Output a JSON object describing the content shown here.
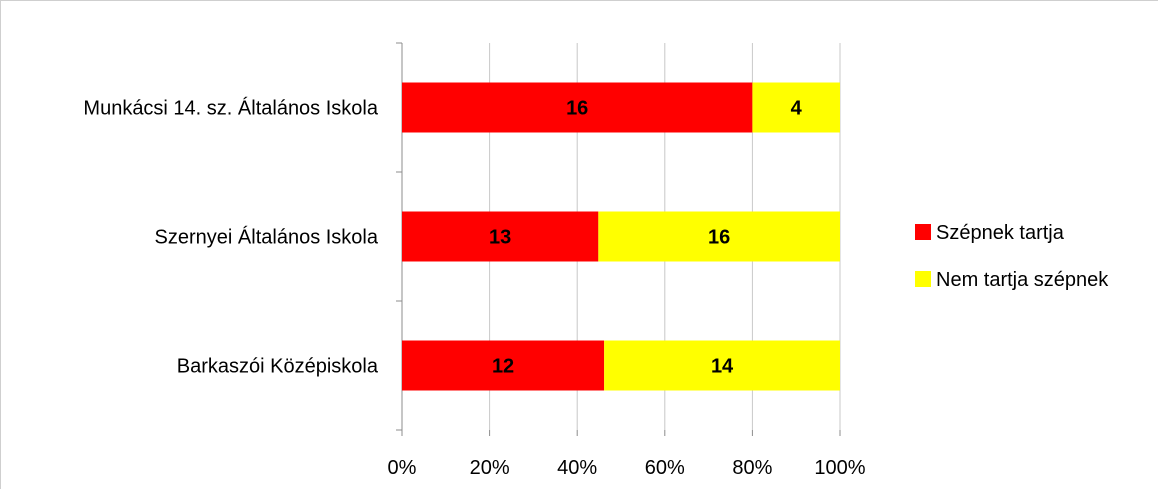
{
  "chart_data": {
    "type": "bar",
    "orientation": "horizontal",
    "stacked": "percent",
    "categories": [
      "Munkácsi 14. sz. Általános Iskola",
      "Szernyei Általános Iskola",
      "Barkaszói Középiskola"
    ],
    "series": [
      {
        "name": "Szépnek tartja",
        "values": [
          16,
          13,
          12
        ],
        "color": "#ff0000"
      },
      {
        "name": "Nem tartja szépnek",
        "values": [
          4,
          16,
          14
        ],
        "color": "#ffff00"
      }
    ],
    "xticks": [
      "0%",
      "20%",
      "40%",
      "60%",
      "80%",
      "100%"
    ],
    "xlim": [
      0,
      100
    ],
    "grid": true,
    "legend_position": "right"
  }
}
